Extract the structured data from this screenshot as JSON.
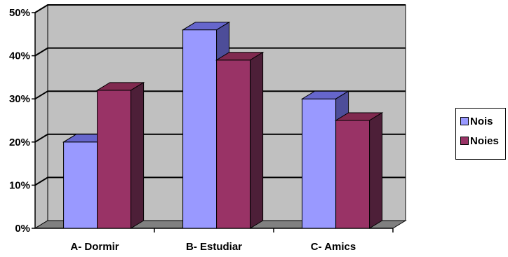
{
  "chart_data": {
    "type": "bar",
    "categories": [
      "A- Dormir",
      "B- Estudiar",
      "C- Amics"
    ],
    "series": [
      {
        "name": "Nois",
        "values": [
          20,
          46,
          30
        ],
        "color": "#9999ff",
        "top_color": "#6666cc",
        "side_color": "#4d4d99"
      },
      {
        "name": "Noies",
        "values": [
          32,
          39,
          25
        ],
        "color": "#993366",
        "top_color": "#80294f",
        "side_color": "#4d1f38"
      }
    ],
    "ylim": [
      0,
      50
    ],
    "yticks": [
      "0%",
      "10%",
      "20%",
      "30%",
      "40%",
      "50%"
    ],
    "grid": true,
    "legend_position": "right",
    "wall_color": "#c0c0c0",
    "floor_color": "#808080"
  }
}
